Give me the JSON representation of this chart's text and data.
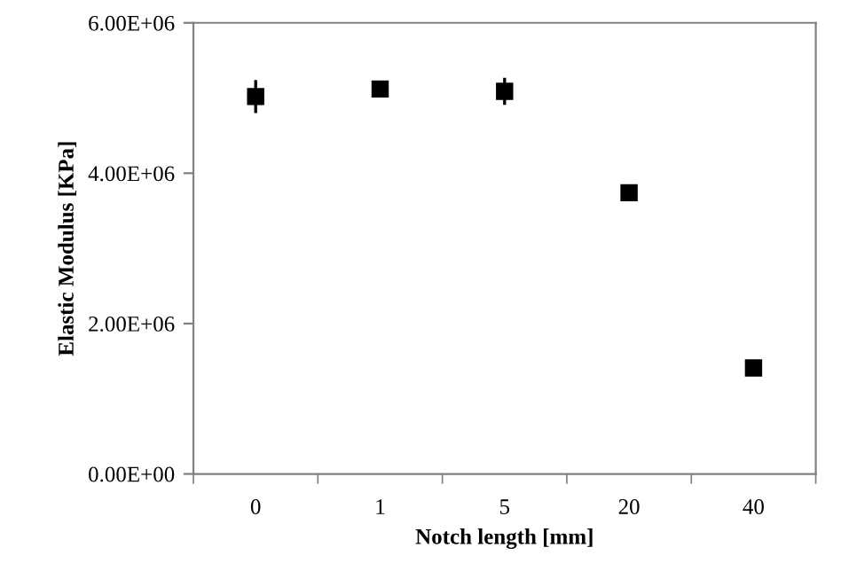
{
  "chart_data": {
    "type": "scatter",
    "xlabel": "Notch length [mm]",
    "ylabel": "Elastic Modulus [KPa]",
    "categories": [
      "0",
      "1",
      "5",
      "20",
      "40"
    ],
    "values": [
      5020000,
      5120000,
      5090000,
      3740000,
      1410000
    ],
    "errors": [
      220000,
      70000,
      180000,
      100000,
      60000
    ],
    "color": "#000000",
    "marker": "square",
    "ylim": [
      0,
      6000000
    ],
    "yticks": [
      {
        "value": 0,
        "label": "0.00E+00"
      },
      {
        "value": 2000000,
        "label": "2.00E+06"
      },
      {
        "value": 4000000,
        "label": "4.00E+06"
      },
      {
        "value": 6000000,
        "label": "6.00E+06"
      }
    ],
    "grid": false,
    "legend": false
  }
}
